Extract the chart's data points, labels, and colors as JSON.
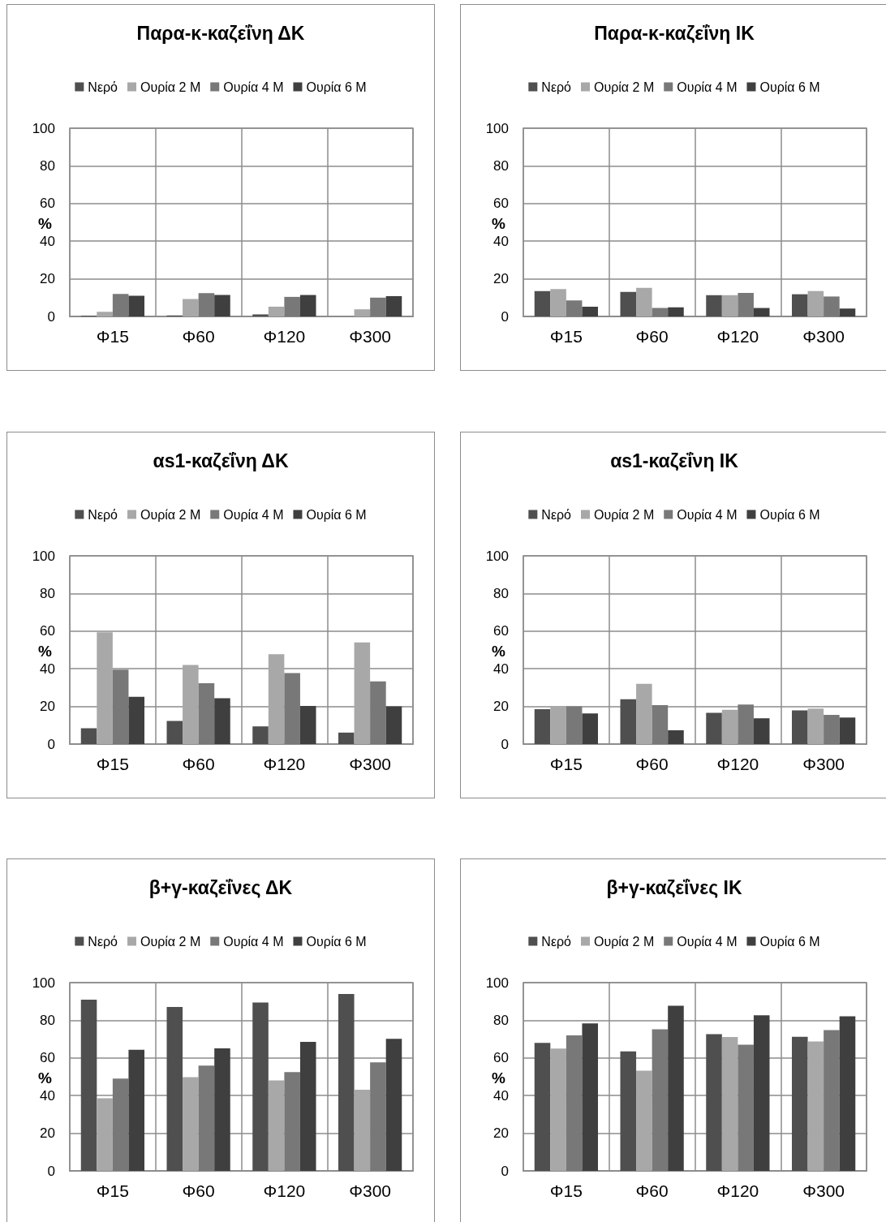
{
  "chart_data": [
    {
      "type": "bar",
      "title": "Παρα-κ-καζεΐνη ΔΚ",
      "ylabel": "%",
      "categories": [
        "Φ15",
        "Φ60",
        "Φ120",
        "Φ300"
      ],
      "ylim": [
        0,
        100
      ],
      "yticks": [
        0,
        20,
        40,
        60,
        80,
        100
      ],
      "grid": true,
      "legend": "top",
      "series": [
        {
          "name": "Νερό",
          "color": "#4f4f4f",
          "values": [
            0.4,
            0.5,
            1.1,
            0
          ]
        },
        {
          "name": "Ουρία 2 Μ",
          "color": "#a8a8a8",
          "values": [
            2.5,
            9.3,
            5.2,
            3.8
          ]
        },
        {
          "name": "Ουρία 4 Μ",
          "color": "#787878",
          "values": [
            12,
            12.4,
            10.4,
            10
          ]
        },
        {
          "name": "Ουρία 6 Μ",
          "color": "#3f3f3f",
          "values": [
            11,
            11.4,
            11.4,
            10.8
          ]
        }
      ]
    },
    {
      "type": "bar",
      "title": "Παρα-κ-καζεΐνη ΙΚ",
      "ylabel": "%",
      "categories": [
        "Φ15",
        "Φ60",
        "Φ120",
        "Φ300"
      ],
      "ylim": [
        0,
        100
      ],
      "yticks": [
        0,
        20,
        40,
        60,
        80,
        100
      ],
      "grid": true,
      "legend": "top",
      "series": [
        {
          "name": "Νερό",
          "color": "#4f4f4f",
          "values": [
            13.5,
            13,
            11.3,
            11.8
          ]
        },
        {
          "name": "Ουρία 2 Μ",
          "color": "#a8a8a8",
          "values": [
            14.6,
            15.2,
            11.3,
            13.5
          ]
        },
        {
          "name": "Ουρία 4 Μ",
          "color": "#787878",
          "values": [
            8.5,
            4.5,
            12.5,
            10.6
          ]
        },
        {
          "name": "Ουρία 6 Μ",
          "color": "#3f3f3f",
          "values": [
            5.2,
            4.9,
            4.5,
            4.2
          ]
        }
      ]
    },
    {
      "type": "bar",
      "title": "αs1-καζεΐνη ΔΚ",
      "ylabel": "%",
      "categories": [
        "Φ15",
        "Φ60",
        "Φ120",
        "Φ300"
      ],
      "ylim": [
        0,
        100
      ],
      "yticks": [
        0,
        20,
        40,
        60,
        80,
        100
      ],
      "grid": true,
      "legend": "top",
      "series": [
        {
          "name": "Νερό",
          "color": "#4f4f4f",
          "values": [
            8.4,
            12.3,
            9.4,
            6.1
          ]
        },
        {
          "name": "Ουρία 2 Μ",
          "color": "#a8a8a8",
          "values": [
            59.4,
            42,
            47.7,
            54
          ]
        },
        {
          "name": "Ουρία 4 Μ",
          "color": "#787878",
          "values": [
            39.6,
            32.3,
            37.7,
            33.3
          ]
        },
        {
          "name": "Ουρία 6 Μ",
          "color": "#3f3f3f",
          "values": [
            25.1,
            24.4,
            20.3,
            20
          ]
        }
      ]
    },
    {
      "type": "bar",
      "title": "αs1-καζεΐνη ΙΚ",
      "ylabel": "%",
      "categories": [
        "Φ15",
        "Φ60",
        "Φ120",
        "Φ300"
      ],
      "ylim": [
        0,
        100
      ],
      "yticks": [
        0,
        20,
        40,
        60,
        80,
        100
      ],
      "grid": true,
      "legend": "top",
      "series": [
        {
          "name": "Νερό",
          "color": "#4f4f4f",
          "values": [
            18.5,
            23.8,
            16.6,
            17.9
          ]
        },
        {
          "name": "Ουρία 2 Μ",
          "color": "#a8a8a8",
          "values": [
            20.3,
            32,
            18.2,
            18.9
          ]
        },
        {
          "name": "Ουρία 4 Μ",
          "color": "#787878",
          "values": [
            20,
            20.7,
            21,
            15.5
          ]
        },
        {
          "name": "Ουρία 6 Μ",
          "color": "#3f3f3f",
          "values": [
            16.3,
            7.3,
            13.7,
            14.1
          ]
        }
      ]
    },
    {
      "type": "bar",
      "title": "β+γ-καζεΐνες ΔΚ",
      "ylabel": "%",
      "categories": [
        "Φ15",
        "Φ60",
        "Φ120",
        "Φ300"
      ],
      "ylim": [
        0,
        100
      ],
      "yticks": [
        0,
        20,
        40,
        60,
        80,
        100
      ],
      "grid": true,
      "legend": "top",
      "series": [
        {
          "name": "Νερό",
          "color": "#4f4f4f",
          "values": [
            91,
            87.1,
            89.4,
            94
          ]
        },
        {
          "name": "Ουρία 2 Μ",
          "color": "#a8a8a8",
          "values": [
            38.6,
            49.8,
            48.1,
            43.1
          ]
        },
        {
          "name": "Ουρία 4 Μ",
          "color": "#787878",
          "values": [
            49,
            55.9,
            52.5,
            57.7
          ]
        },
        {
          "name": "Ουρία 6 Μ",
          "color": "#3f3f3f",
          "values": [
            64.3,
            65.1,
            68.5,
            70.2
          ]
        }
      ]
    },
    {
      "type": "bar",
      "title": "β+γ-καζεΐνες ΙΚ",
      "ylabel": "%",
      "categories": [
        "Φ15",
        "Φ60",
        "Φ120",
        "Φ300"
      ],
      "ylim": [
        0,
        100
      ],
      "yticks": [
        0,
        20,
        40,
        60,
        80,
        100
      ],
      "grid": true,
      "legend": "top",
      "series": [
        {
          "name": "Νερό",
          "color": "#4f4f4f",
          "values": [
            68,
            63.5,
            72.6,
            71.2
          ]
        },
        {
          "name": "Ουρία 2 Μ",
          "color": "#a8a8a8",
          "values": [
            65,
            53.2,
            71.1,
            68.7
          ]
        },
        {
          "name": "Ουρία 4 Μ",
          "color": "#787878",
          "values": [
            72,
            75.2,
            67,
            74.8
          ]
        },
        {
          "name": "Ουρία 6 Μ",
          "color": "#3f3f3f",
          "values": [
            78.3,
            87.7,
            82.6,
            82.1
          ]
        }
      ]
    }
  ]
}
